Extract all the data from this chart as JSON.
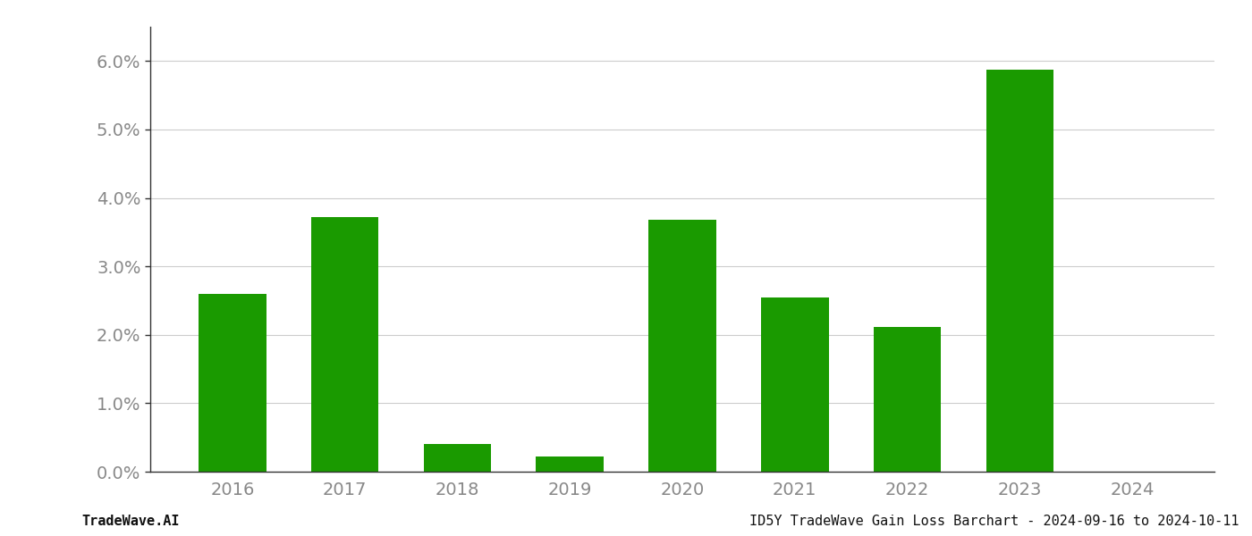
{
  "categories": [
    "2016",
    "2017",
    "2018",
    "2019",
    "2020",
    "2021",
    "2022",
    "2023",
    "2024"
  ],
  "values": [
    0.026,
    0.0372,
    0.004,
    0.0022,
    0.0368,
    0.0255,
    0.0212,
    0.0588,
    0.0
  ],
  "bar_color": "#1a9a00",
  "background_color": "#ffffff",
  "grid_color": "#cccccc",
  "spine_color": "#333333",
  "tick_color": "#888888",
  "footer_color": "#111111",
  "ylim": [
    0.0,
    0.065
  ],
  "yticks": [
    0.0,
    0.01,
    0.02,
    0.03,
    0.04,
    0.05,
    0.06
  ],
  "footer_left": "TradeWave.AI",
  "footer_right": "ID5Y TradeWave Gain Loss Barchart - 2024-09-16 to 2024-10-11",
  "footer_fontsize": 11,
  "tick_fontsize": 14,
  "bar_width": 0.6
}
